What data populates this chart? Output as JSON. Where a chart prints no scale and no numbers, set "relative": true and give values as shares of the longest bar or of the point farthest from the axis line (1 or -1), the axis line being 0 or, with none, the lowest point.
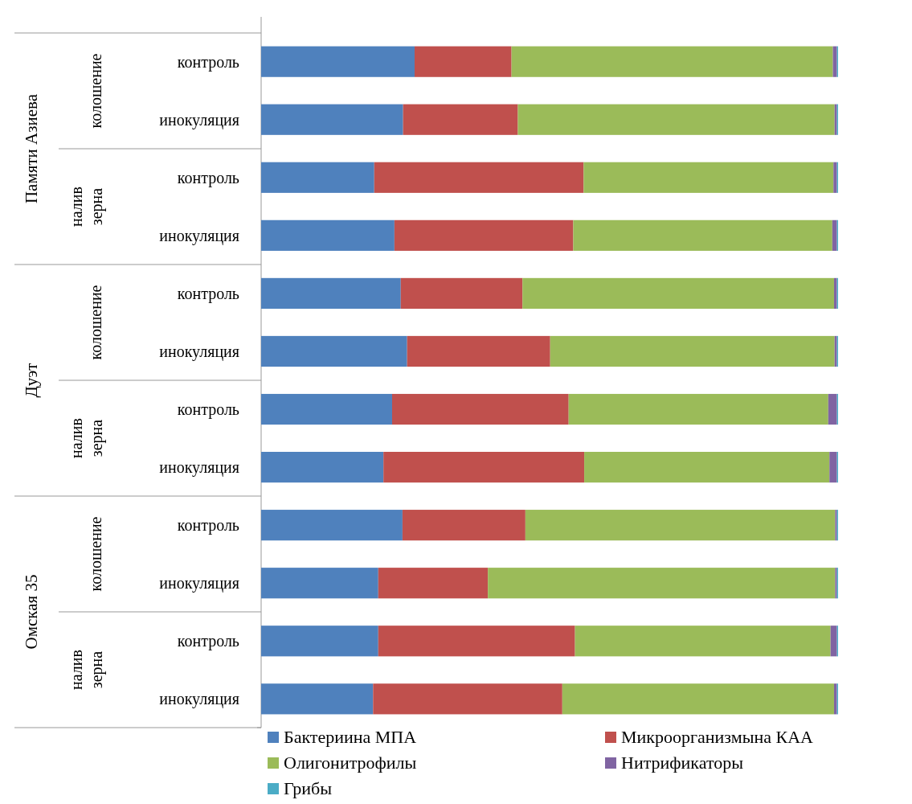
{
  "chart_data": {
    "type": "bar",
    "orientation": "horizontal",
    "stacked": true,
    "relative": true,
    "legend": "bottom",
    "categories": [
      "контроль",
      "инокуляция",
      "контроль",
      "инокуляция",
      "контроль",
      "инокуляция",
      "контроль",
      "инокуляция",
      "контроль",
      "инокуляция",
      "контроль",
      "инокуляция"
    ],
    "annotations": [
      "Памяти Азиева",
      "колошение",
      "налив зерна",
      "Дуэт",
      "колошение",
      "налив зерна",
      "Омская 35",
      "колошение",
      "налив зерна"
    ],
    "series": [
      {
        "name": "Бактериина МПА",
        "color": "#4f81bd",
        "values": [
          0.266,
          0.246,
          0.196,
          0.231,
          0.242,
          0.253,
          0.227,
          0.212,
          0.245,
          0.203,
          0.203,
          0.194
        ]
      },
      {
        "name": "Микроорганизмына КАА",
        "color": "#c0504d",
        "values": [
          0.168,
          0.199,
          0.363,
          0.31,
          0.211,
          0.248,
          0.306,
          0.348,
          0.213,
          0.19,
          0.341,
          0.328
        ]
      },
      {
        "name": "Олигонитрофилы",
        "color": "#9bbb59",
        "values": [
          0.557,
          0.549,
          0.433,
          0.449,
          0.54,
          0.493,
          0.45,
          0.425,
          0.537,
          0.602,
          0.443,
          0.471
        ]
      },
      {
        "name": "Нитрификаторы",
        "color": "#8064a2",
        "values": [
          0.007,
          0.004,
          0.006,
          0.008,
          0.005,
          0.004,
          0.015,
          0.013,
          0.003,
          0.003,
          0.011,
          0.005
        ]
      },
      {
        "name": "Грибы",
        "color": "#4bacc6",
        "values": [
          0.002,
          0.002,
          0.002,
          0.002,
          0.002,
          0.002,
          0.002,
          0.002,
          0.002,
          0.002,
          0.002,
          0.002
        ]
      }
    ]
  }
}
